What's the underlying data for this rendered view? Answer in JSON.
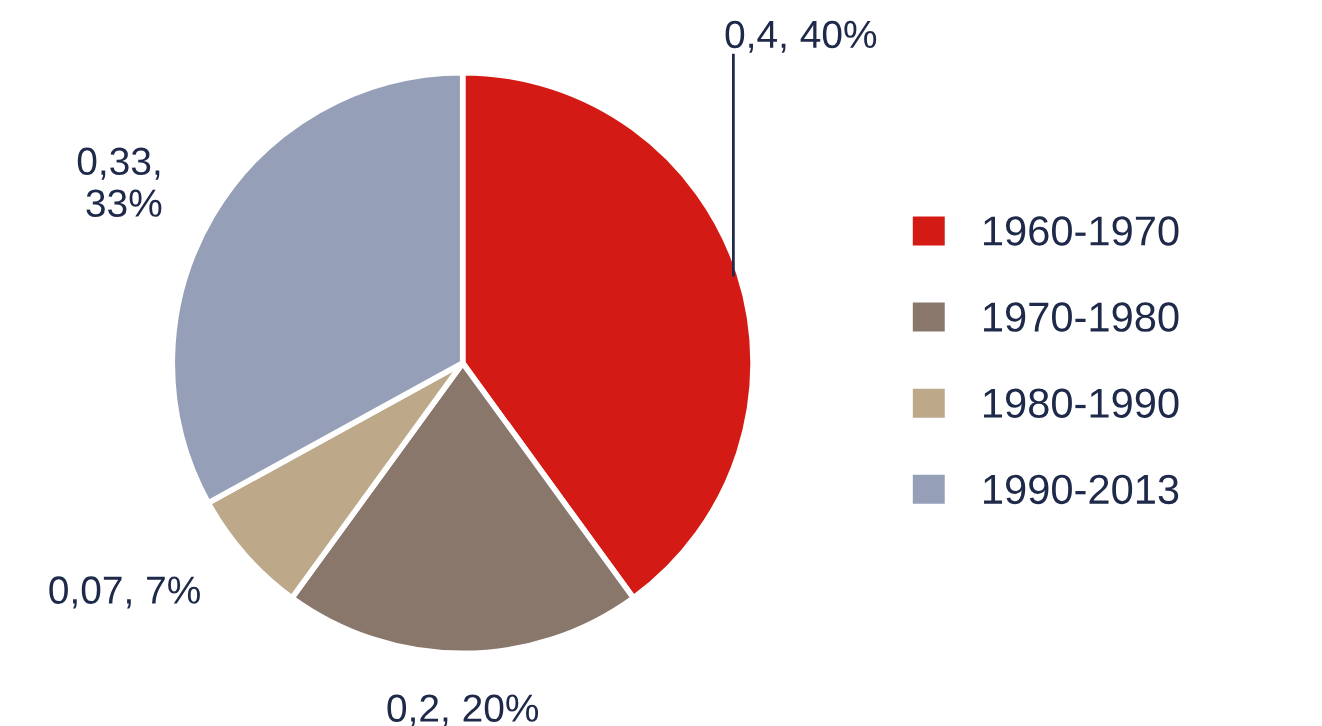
{
  "chart_data": {
    "type": "pie",
    "categories": [
      "1960-1970",
      "1970-1980",
      "1980-1990",
      "1990-2013"
    ],
    "values": [
      0.4,
      0.2,
      0.07,
      0.33
    ],
    "colors": [
      "#d41a14",
      "#8a776c",
      "#bda88a",
      "#95a0b8"
    ],
    "value_labels": [
      "0,4, 40%",
      "0,2, 20%",
      "0,07, 7%",
      "0,33,\n33%"
    ],
    "legend": "right"
  }
}
